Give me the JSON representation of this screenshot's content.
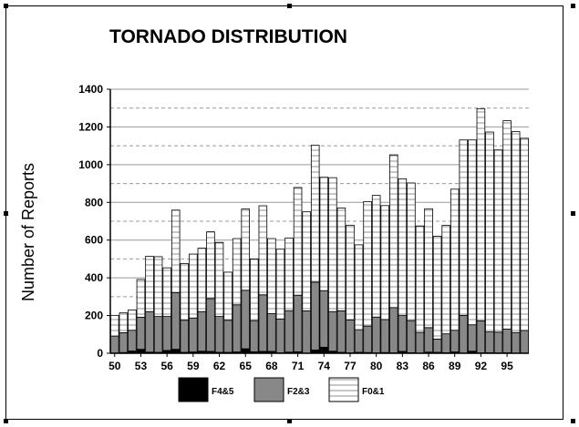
{
  "chart_data": {
    "type": "bar",
    "stacked": true,
    "title": "TORNADO DISTRIBUTION",
    "xlabel": "",
    "ylabel": "Number of Reports",
    "ylim": [
      0,
      1400
    ],
    "yticks": [
      0,
      200,
      400,
      600,
      800,
      1000,
      1200,
      1400
    ],
    "grid": true,
    "legend_placement": "bottom",
    "categories": [
      "50",
      "51",
      "52",
      "53",
      "54",
      "55",
      "56",
      "57",
      "58",
      "59",
      "60",
      "61",
      "62",
      "63",
      "64",
      "65",
      "66",
      "67",
      "68",
      "69",
      "70",
      "71",
      "72",
      "73",
      "74",
      "75",
      "76",
      "77",
      "78",
      "79",
      "80",
      "81",
      "82",
      "83",
      "84",
      "85",
      "86",
      "87",
      "88",
      "89",
      "90",
      "91",
      "92",
      "93",
      "94",
      "95",
      "96",
      "97"
    ],
    "xtick_labels": [
      "50",
      "53",
      "56",
      "59",
      "62",
      "65",
      "68",
      "71",
      "74",
      "77",
      "80",
      "83",
      "86",
      "89",
      "92",
      "95"
    ],
    "series": [
      {
        "name": "F4&5",
        "color": "#000000",
        "values": [
          1,
          4,
          12,
          21,
          6,
          5,
          15,
          21,
          5,
          7,
          11,
          10,
          5,
          5,
          7,
          24,
          8,
          10,
          10,
          2,
          6,
          8,
          0,
          17,
          32,
          11,
          5,
          2,
          5,
          4,
          2,
          4,
          2,
          10,
          3,
          1,
          6,
          5,
          3,
          7,
          1,
          11,
          2,
          3,
          2,
          3,
          0,
          1
        ]
      },
      {
        "name": "F2&3",
        "color": "#888888",
        "values": [
          90,
          105,
          110,
          170,
          215,
          190,
          180,
          300,
          170,
          180,
          210,
          280,
          190,
          170,
          250,
          310,
          165,
          300,
          200,
          180,
          220,
          300,
          225,
          360,
          300,
          210,
          220,
          175,
          120,
          140,
          190,
          175,
          240,
          190,
          170,
          110,
          130,
          70,
          100,
          115,
          200,
          140,
          170,
          110,
          110,
          125,
          110,
          120
        ]
      },
      {
        "name": "F0&1",
        "color": "#ffffff",
        "values": [
          110,
          105,
          108,
          200,
          293,
          317,
          258,
          438,
          300,
          339,
          336,
          354,
          393,
          255,
          351,
          431,
          327,
          472,
          398,
          370,
          385,
          571,
          525,
          726,
          601,
          710,
          545,
          502,
          450,
          660,
          645,
          604,
          810,
          725,
          730,
          564,
          630,
          545,
          575,
          748,
          930,
          980,
          1125,
          1060,
          966,
          1105,
          1065,
          1019
        ]
      }
    ]
  }
}
